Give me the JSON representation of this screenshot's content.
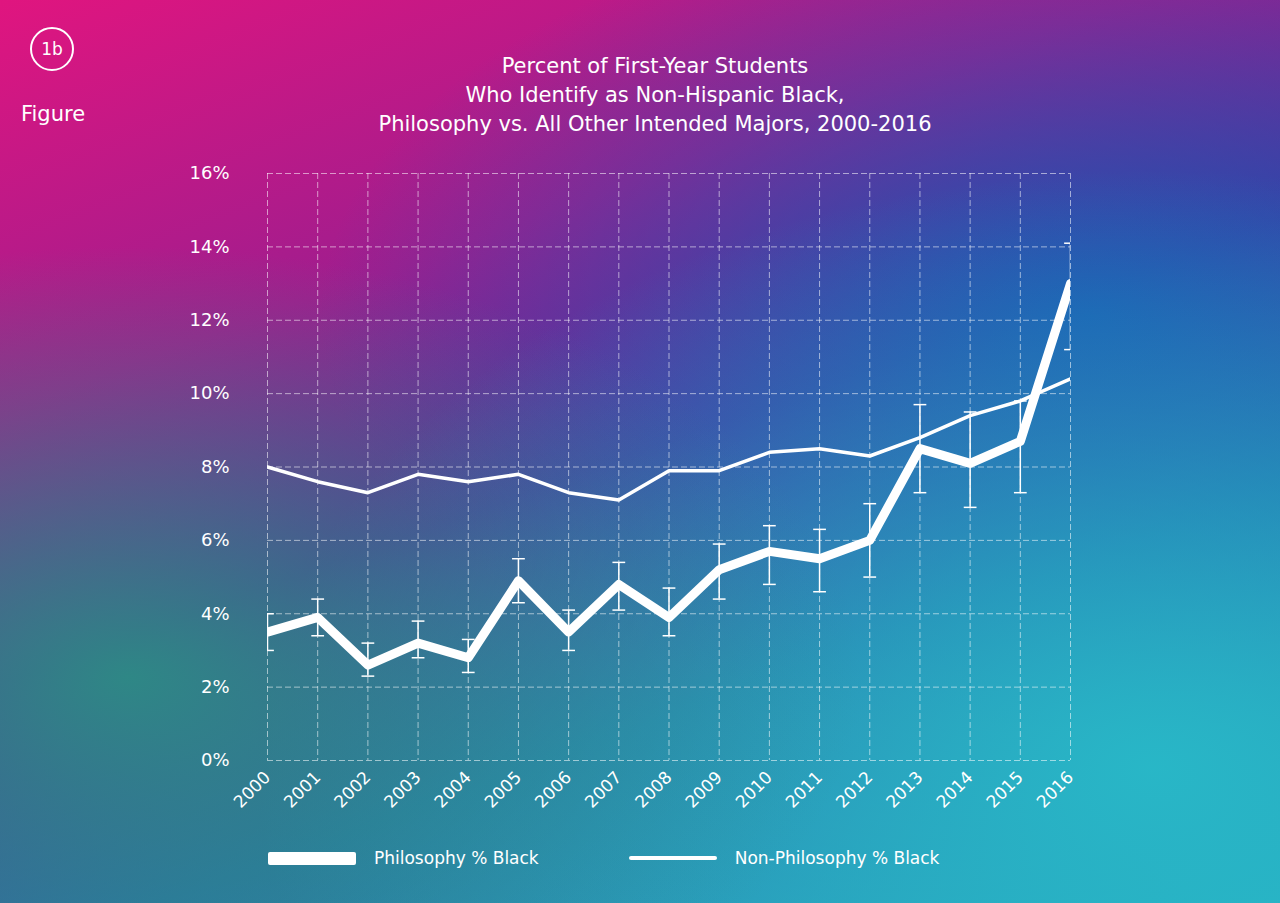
{
  "chart_data": {
    "type": "line",
    "title": "Percent of First-Year Students\nWho Identify as Non-Hispanic Black,\nPhilosophy vs. All Other Intended Majors, 2000-2016",
    "annotations": [
      "1b",
      "Figure"
    ],
    "x": [
      2000,
      2001,
      2002,
      2003,
      2004,
      2005,
      2006,
      2007,
      2008,
      2009,
      2010,
      2011,
      2012,
      2013,
      2014,
      2015,
      2016
    ],
    "xlim": [
      2000,
      2016
    ],
    "xticks": [
      2000,
      2001,
      2002,
      2003,
      2004,
      2005,
      2006,
      2007,
      2008,
      2009,
      2010,
      2011,
      2012,
      2013,
      2014,
      2015,
      2016
    ],
    "ylim": [
      0,
      16
    ],
    "yticks": [
      {
        "value": 0,
        "label": "0%"
      },
      {
        "value": 2,
        "label": "2%"
      },
      {
        "value": 4,
        "label": "4%"
      },
      {
        "value": 6,
        "label": "6%"
      },
      {
        "value": 8,
        "label": "8%"
      },
      {
        "value": 10,
        "label": "10%"
      },
      {
        "value": 12,
        "label": "12%"
      },
      {
        "value": 14,
        "label": "14%"
      },
      {
        "value": 16,
        "label": "16%"
      }
    ],
    "grid": true,
    "legend": "bottom",
    "series": [
      {
        "name": "Philosophy % Black",
        "color": "#ffffff",
        "line_style": "thick",
        "values": [
          3.5,
          3.9,
          2.6,
          3.2,
          2.8,
          4.9,
          3.5,
          4.8,
          3.9,
          5.2,
          5.7,
          5.5,
          6.0,
          8.5,
          8.1,
          8.7,
          13.0
        ],
        "error_low": [
          3.0,
          3.4,
          2.3,
          2.8,
          2.4,
          4.3,
          3.0,
          4.1,
          3.4,
          4.4,
          4.8,
          4.6,
          5.0,
          7.3,
          6.9,
          7.3,
          11.2
        ],
        "error_high": [
          4.0,
          4.4,
          3.2,
          3.8,
          3.3,
          5.5,
          4.1,
          5.4,
          4.7,
          5.9,
          6.4,
          6.3,
          7.0,
          9.7,
          9.5,
          9.8,
          14.1
        ]
      },
      {
        "name": "Non-Philosophy % Black",
        "color": "#ffffff",
        "line_style": "solid",
        "values": [
          8.0,
          7.6,
          7.3,
          7.8,
          7.6,
          7.8,
          7.3,
          7.1,
          7.9,
          7.9,
          8.4,
          8.5,
          8.3,
          8.8,
          9.4,
          9.8,
          10.4
        ]
      }
    ]
  }
}
